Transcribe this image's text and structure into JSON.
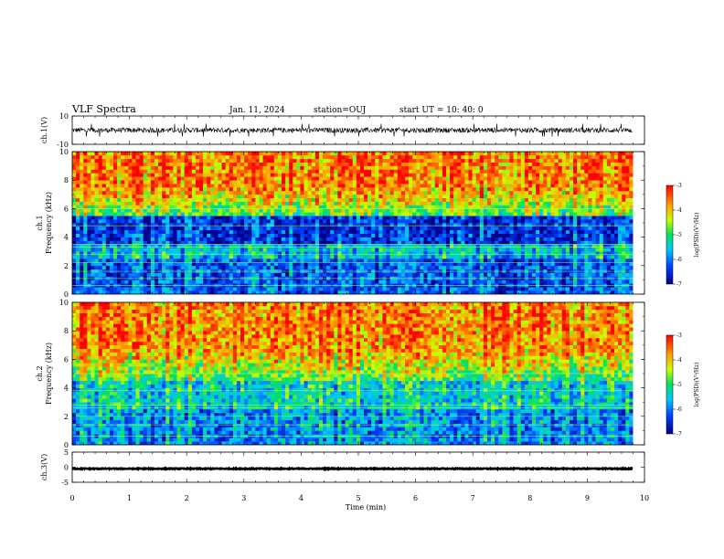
{
  "header": {
    "title": "VLF Spectra",
    "date": "Jan. 11, 2024",
    "station": "station=OUJ",
    "start": "start  UT  =   10: 40: 0"
  },
  "chart_data": {
    "type": "heatmap",
    "xlabel": "Time (min)",
    "xlim": [
      0,
      10
    ],
    "x_ticks": [
      "0",
      "1",
      "2",
      "3",
      "4",
      "5",
      "6",
      "7",
      "8",
      "9",
      "10"
    ],
    "panels": [
      {
        "kind": "line",
        "ylabel": "ch.1(V)",
        "ylim": [
          -10,
          10
        ],
        "y_ticks": [
          "10",
          "-10"
        ],
        "baseline": 0,
        "amplitude": 1.8,
        "end_minute": 9.8
      },
      {
        "kind": "spectrogram",
        "ylabel_1": "ch.1",
        "ylabel_2": "Frequency (kHz)",
        "ylim": [
          0,
          10
        ],
        "y_ticks": [
          "0",
          "2",
          "4",
          "6",
          "8",
          "10"
        ],
        "end_minute": 9.8,
        "colorbar": {
          "label": "log(PSD)(V²/Hz)",
          "range": [
            -7,
            -3
          ],
          "ticks": [
            "-3",
            "-4",
            "-5",
            "-6",
            "-7"
          ]
        }
      },
      {
        "kind": "spectrogram",
        "ylabel_1": "ch.2",
        "ylabel_2": "Frequency (kHz)",
        "ylim": [
          0,
          10
        ],
        "y_ticks": [
          "0",
          "2",
          "4",
          "6",
          "8",
          "10"
        ],
        "end_minute": 9.8,
        "colorbar": {
          "label": "log(PSD)(V²/Hz)",
          "range": [
            -7,
            -3
          ],
          "ticks": [
            "-3",
            "-4",
            "-5",
            "-6",
            "-7"
          ]
        }
      },
      {
        "kind": "line",
        "ylabel": "ch.3(V)",
        "ylim": [
          -5,
          5
        ],
        "y_ticks": [
          "5",
          "0",
          "-5"
        ],
        "baseline": -0.5,
        "amplitude": 0.15,
        "end_minute": 9.8
      }
    ]
  }
}
